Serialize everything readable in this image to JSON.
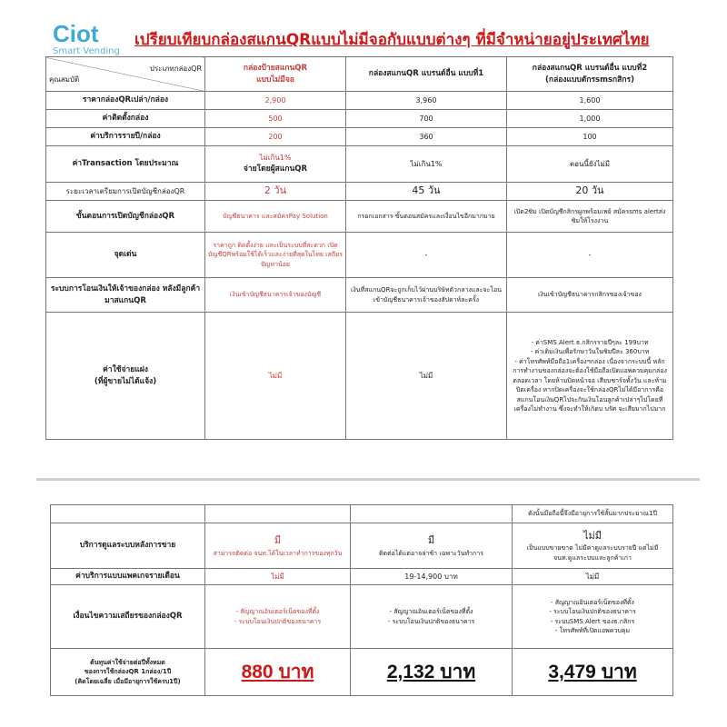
{
  "logo": {
    "name": "Ciot",
    "tagline": "Smart Vending"
  },
  "title": "เปรียบเทียบกล่องสแกนQRแบบไม่มีจอกับแบบต่างๆ ที่มีจำหน่ายอยู่ประเทศไทย",
  "colors": {
    "accent": "#d01818",
    "brand": "#3fa9d8",
    "highlight_text": "#c83c3c"
  },
  "table1": {
    "corner_top": "ประเภทกล่องQR",
    "corner_bottom": "คุณสมบัติ",
    "columns": [
      {
        "line1": "กล่องป้ายสแกนQR",
        "line2": "แบบไม่มีจอ"
      },
      {
        "line1": "กล่องสแกนQR แบรนด์อื่น แบบที่1",
        "line2": ""
      },
      {
        "line1": "กล่องสแกนQR แบรนด์อื่น แบบที่2",
        "line2": "(กล่องแบบตักรsmsกสิกร)"
      }
    ],
    "rows": [
      {
        "label": "ราคากล่องQRเปล่า/กล่อง",
        "values": [
          "2,900",
          "3,960",
          "1,600"
        ]
      },
      {
        "label": "ค่าติดตั้งกล่อง",
        "values": [
          "500",
          "700",
          "1,000"
        ]
      },
      {
        "label": "ค่าบริการรายปี/กล่อง",
        "values": [
          "200",
          "360",
          "100"
        ]
      },
      {
        "label": "ค่าTransaction โดยประมาณ",
        "values": [
          "ไม่เกิน1%",
          "ไม่เกิน1%",
          "ตอนนี้ยังไม่มี"
        ],
        "note": "จ่ายโดยผู้สแกนQR"
      },
      {
        "label": "ระยะเวลาเตรียมการเปิดบัญชีกล่องQR",
        "values": [
          "2 วัน",
          "45 วัน",
          "20 วัน"
        ]
      },
      {
        "label": "ขั้นตอนการเปิดบัญชีกล่องQR",
        "values": [
          "บัญชีธนาคาร และสมัครPay Solution",
          "กรอกเอกสาร ขั้นตอนสมัครและเงื่อนไขอีกมากมาย",
          "เปิด2ซิม เปิดบัญชีกสิกรผูกพร้อมเพย์ สมัครsms alertส่งซิมให้โรงงาน"
        ]
      },
      {
        "label": "จุดเด่น",
        "values": [
          "ราคาถูก ติดตั้งง่าย และเป็นระบบที่สะดวก เปิดบัญชีQRพร้อมใช้ได้เร็วและง่ายที่สุดในไทย เสถียร ปัญหาน้อย",
          "-",
          "-"
        ]
      },
      {
        "label": "ระบบการโอนเงินให้เจ้าของกล่อง หลังมีลูกค้ามาสแกนQR",
        "values": [
          "เงินเข้าบัญชีธนาคารเจ้าของบัญชี",
          "เงินที่สแกนQRจะถูกเก็บไว้ผ่านบริษัทตัวกลางและจะโอนเข้าบัญชีธนาคารเจ้าของสัปดาห์ละครั้ง",
          "เงินเข้าบัญชีธนาคารกสิกรของเจ้าของ"
        ]
      },
      {
        "label": "ค่าใช้จ่ายแฝง",
        "label2": "(ที่ผู้ขายไม่ได้แจ้ง)",
        "values": [
          "ไม่มี",
          "ไม่มี"
        ],
        "hidden_costs": [
          "- ค่าSMS Alert ธ.กสิกรรายปีๆละ 199บาท",
          "- ค่าเติมเงินเพื่อรักษาวันในซิมปีละ 360บาท",
          "- ค่าโทรศัพท์มือถือ1เครื่องฯกล่อง เนื่องจากระบบนี้ หลักการทำงานของกล่องจะต้องใช้มือถือเปิดแอพควบคุมกล่องตลอดเวลา โดยห้ามปิดหน้าจอ เสียบชาร์จทั้งวัน และห้ามปิดเครื่อง หากปิดเครื่องจะใช้กล่องQRไม่ได้มีอาการคือสแกนโอนเงินQRไปจะกินเงินโอนลูกค้าเปล่าๆไปโดยที่เครื่องไม่ทำงาน ซึ่งจะทำให้เกิดบ บรัศ จะเสียมากไปมาก"
        ]
      }
    ]
  },
  "table2": {
    "top_note": "ดังนั้นมือถือนี้จึงมีอายุการใช้สั้นมากประมาณ1ปี",
    "rows": [
      {
        "label": "บริการดูแลระบบหลังการขาย",
        "values": [
          {
            "main": "มี",
            "sub": "สามารถติดต่อ จนท.ได้ในเวลาทำการของทุกวัน"
          },
          {
            "main": "มี",
            "sub": "ติดต่อได้แต่อาจล่าช้า เฉพาะวันทำการ"
          },
          {
            "main": "ไม่มี",
            "sub": "เป็นแบบขายขาด ไม่มีค่าดูแลระบบรายปี แต่ไม่มี จนท.ดูแลระบบและลูกค้าเก่า"
          }
        ]
      },
      {
        "label": "ค่าบริการแบบแพคเกจรายเดือน",
        "values": [
          "ไม่มี",
          "19-14,900 บาท",
          "ไม่มี"
        ]
      },
      {
        "label": "เงื่อนไขความเสถียรของกล่องQR",
        "values": [
          [
            "- สัญญาณอินเตอร์เน็ตของที่ตั้ง",
            "- ระบบโอนเงินปกติของธนาคาร"
          ],
          [
            "- สัญญาณอินเตอร์เน็ตของที่ตั้ง",
            "- ระบบโอนเงินปกติของธนาคาร"
          ],
          [
            "- สัญญาณอินเตอร์เน็ตของที่ตั้ง",
            "- ระบบโอนเงินปกติของธนาคาร",
            "- ระบบSMS Alert ของธ.กสิกร",
            "- โทรศัพท์ที่เปิดแอพควบคุม"
          ]
        ]
      },
      {
        "label": [
          "ต้นทุนค่าใช้จ่ายต่อปีทั้งหมด",
          "ของการใช้กล่องQR 1กล่อง/1ปี",
          "(คิดโดยเฉลี่ย เมื่อมีอายุการใช้ครบ1ปี)"
        ],
        "values": [
          "880 บาท",
          "2,132 บาท",
          "3,479 บาท"
        ]
      }
    ]
  }
}
